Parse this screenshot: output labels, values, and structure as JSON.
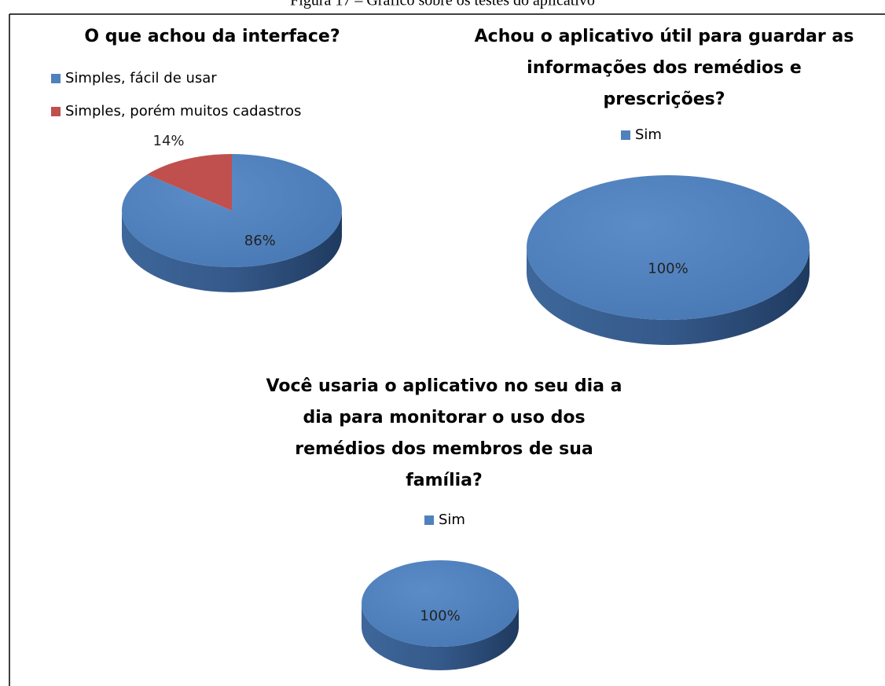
{
  "caption": "Figura 17 – Gráfico sobre os testes do aplicativo",
  "chart_data": [
    {
      "type": "pie",
      "title": [
        "O que achou da interface?"
      ],
      "categories": [
        "Simples, fácil de usar",
        "Simples, porém muitos cadastros"
      ],
      "values": [
        86,
        14
      ],
      "value_labels": [
        "86%",
        "14%"
      ],
      "colors": [
        "#4f81bd",
        "#c0504d"
      ],
      "legend": "top-left"
    },
    {
      "type": "pie",
      "title": [
        "Achou o aplicativo útil para guardar as",
        "informações dos remédios e",
        "prescrições?"
      ],
      "categories": [
        "Sim"
      ],
      "values": [
        100
      ],
      "value_labels": [
        "100%"
      ],
      "colors": [
        "#4f81bd"
      ],
      "legend": "top"
    },
    {
      "type": "pie",
      "title": [
        "Você usaria o aplicativo no seu dia a",
        "dia para monitorar o uso dos",
        "remédios dos membros de sua",
        "família?"
      ],
      "categories": [
        "Sim"
      ],
      "values": [
        100
      ],
      "value_labels": [
        "100%"
      ],
      "colors": [
        "#4f81bd"
      ],
      "legend": "top"
    }
  ]
}
